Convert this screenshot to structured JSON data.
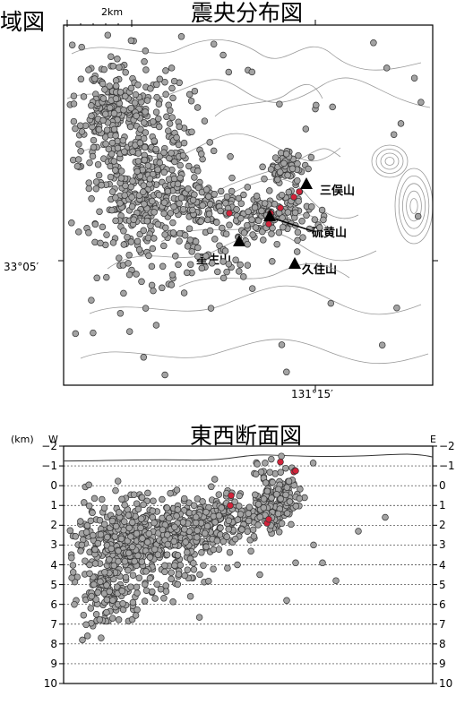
{
  "map": {
    "left_title": "域図",
    "title": "震央分布図",
    "scale_label": "2km",
    "lat_label": "33°05′",
    "lon_label": "131°15′",
    "peaks": [
      {
        "name": "三俣山"
      },
      {
        "name": "硫黄山"
      },
      {
        "name": "星生山"
      },
      {
        "name": "久住山"
      }
    ]
  },
  "section": {
    "title": "東西断面図",
    "unit_label": "(km)",
    "west_label": "W",
    "east_label": "E",
    "depth_ticks": [
      "−2",
      "−1",
      "0",
      "1",
      "2",
      "3",
      "4",
      "5",
      "6",
      "7",
      "8",
      "9",
      "10"
    ]
  },
  "colors": {
    "event_gray": "#a3a3a3",
    "event_red": "#d2233a",
    "contour": "#9a9a9a",
    "frame": "#000000"
  }
}
